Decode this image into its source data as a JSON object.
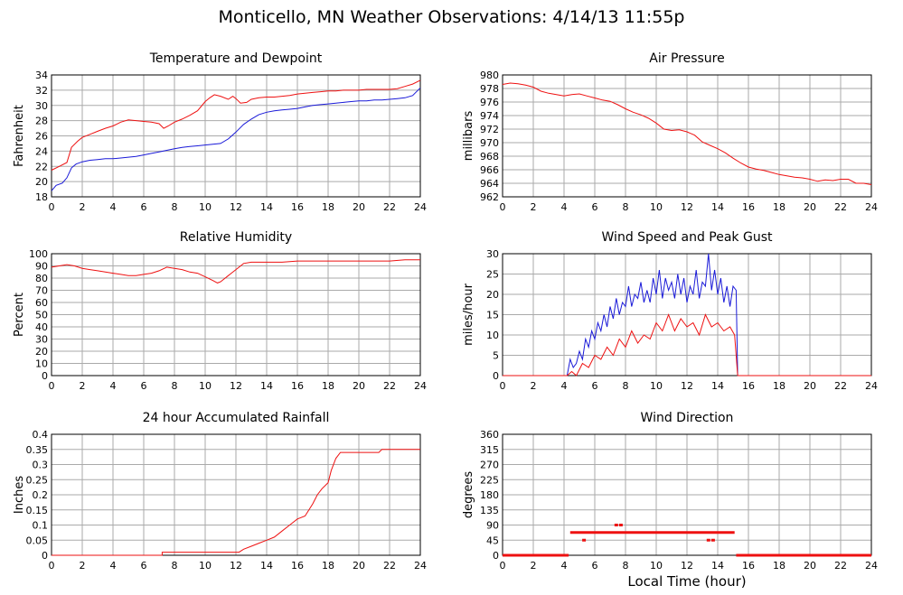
{
  "page": {
    "title": "Monticello, MN Weather Observations: 4/14/13 11:55p",
    "xlabel": "Local Time (hour)"
  },
  "colors": {
    "red": "#ee1111",
    "blue": "#1a1ad8",
    "grid": "#aaaaaa",
    "axis": "#000000"
  },
  "chart_data": [
    {
      "id": "temp",
      "type": "line",
      "title": "Temperature and Dewpoint",
      "xlabel": "",
      "ylabel": "Fahrenheit",
      "xlim": [
        0,
        24
      ],
      "ylim": [
        18,
        34
      ],
      "xticks": [
        0,
        2,
        4,
        6,
        8,
        10,
        12,
        14,
        16,
        18,
        20,
        22,
        24
      ],
      "yticks": [
        18,
        20,
        22,
        24,
        26,
        28,
        30,
        32,
        34
      ],
      "grid": true,
      "series": [
        {
          "color": "red",
          "x": [
            0,
            0.5,
            1,
            1.3,
            1.7,
            2,
            2.5,
            3,
            3.5,
            4,
            4.5,
            5,
            5.5,
            6,
            6.5,
            7,
            7.3,
            7.6,
            8,
            8.5,
            9,
            9.5,
            10,
            10.3,
            10.6,
            11,
            11.5,
            11.8,
            12,
            12.3,
            12.7,
            13,
            13.5,
            14,
            14.5,
            15,
            15.5,
            16,
            16.5,
            17,
            17.5,
            18,
            18.5,
            19,
            19.5,
            20,
            20.5,
            21,
            21.5,
            22,
            22.5,
            23,
            23.5,
            24
          ],
          "y": [
            21.5,
            22,
            22.5,
            24.5,
            25.3,
            25.8,
            26.2,
            26.6,
            27.0,
            27.3,
            27.8,
            28.1,
            28.0,
            27.9,
            27.8,
            27.6,
            27.0,
            27.3,
            27.8,
            28.2,
            28.7,
            29.3,
            30.5,
            31.0,
            31.4,
            31.2,
            30.8,
            31.2,
            30.9,
            30.3,
            30.4,
            30.8,
            31.0,
            31.1,
            31.1,
            31.2,
            31.3,
            31.5,
            31.6,
            31.7,
            31.8,
            31.9,
            31.9,
            32.0,
            32.0,
            32.0,
            32.1,
            32.1,
            32.1,
            32.1,
            32.2,
            32.5,
            32.8,
            33.3
          ]
        },
        {
          "color": "blue",
          "x": [
            0,
            0.3,
            0.7,
            1,
            1.3,
            1.6,
            2,
            2.5,
            3,
            3.5,
            4,
            4.5,
            5,
            5.5,
            6,
            6.5,
            7,
            7.5,
            8,
            8.5,
            9,
            9.5,
            10,
            10.5,
            11,
            11.5,
            12,
            12.5,
            13,
            13.5,
            14,
            14.5,
            15,
            15.5,
            16,
            16.5,
            17,
            17.5,
            18,
            18.5,
            19,
            19.5,
            20,
            20.5,
            21,
            21.5,
            22,
            22.5,
            23,
            23.5,
            24
          ],
          "y": [
            18.8,
            19.5,
            19.8,
            20.5,
            21.8,
            22.3,
            22.6,
            22.8,
            22.9,
            23.0,
            23.0,
            23.1,
            23.2,
            23.3,
            23.5,
            23.7,
            23.9,
            24.1,
            24.3,
            24.5,
            24.6,
            24.7,
            24.8,
            24.9,
            25.0,
            25.6,
            26.5,
            27.5,
            28.2,
            28.8,
            29.1,
            29.3,
            29.4,
            29.5,
            29.6,
            29.8,
            30.0,
            30.1,
            30.2,
            30.3,
            30.4,
            30.5,
            30.6,
            30.6,
            30.7,
            30.7,
            30.8,
            30.9,
            31.0,
            31.3,
            32.3
          ]
        }
      ]
    },
    {
      "id": "pressure",
      "type": "line",
      "title": "Air Pressure",
      "xlabel": "",
      "ylabel": "millibars",
      "xlim": [
        0,
        24
      ],
      "ylim": [
        962,
        980
      ],
      "xticks": [
        0,
        2,
        4,
        6,
        8,
        10,
        12,
        14,
        16,
        18,
        20,
        22,
        24
      ],
      "yticks": [
        962,
        964,
        966,
        968,
        970,
        972,
        974,
        976,
        978,
        980
      ],
      "grid": true,
      "series": [
        {
          "color": "red",
          "x": [
            0,
            0.5,
            1,
            1.5,
            2,
            2.5,
            3,
            3.5,
            4,
            4.5,
            5,
            5.5,
            6,
            6.5,
            7,
            7.5,
            8,
            8.5,
            9,
            9.5,
            10,
            10.5,
            11,
            11.5,
            12,
            12.5,
            13,
            13.5,
            14,
            14.5,
            15,
            15.5,
            16,
            16.5,
            17,
            17.5,
            18,
            18.5,
            19,
            19.5,
            20,
            20.5,
            21,
            21.5,
            22,
            22.5,
            23,
            23.5,
            24
          ],
          "y": [
            978.6,
            978.8,
            978.7,
            978.5,
            978.2,
            977.6,
            977.3,
            977.1,
            976.9,
            977.1,
            977.2,
            976.9,
            976.6,
            976.3,
            976.1,
            975.6,
            975.0,
            974.5,
            974.1,
            973.6,
            972.9,
            972.0,
            971.8,
            971.9,
            971.6,
            971.1,
            970.1,
            969.6,
            969.1,
            968.5,
            967.7,
            967.0,
            966.4,
            966.1,
            965.9,
            965.6,
            965.3,
            965.1,
            964.9,
            964.8,
            964.6,
            964.3,
            964.5,
            964.4,
            964.6,
            964.6,
            964.0,
            964.0,
            963.8
          ]
        }
      ]
    },
    {
      "id": "humidity",
      "type": "line",
      "title": "Relative Humidity",
      "xlabel": "",
      "ylabel": "Percent",
      "xlim": [
        0,
        24
      ],
      "ylim": [
        0,
        100
      ],
      "xticks": [
        0,
        2,
        4,
        6,
        8,
        10,
        12,
        14,
        16,
        18,
        20,
        22,
        24
      ],
      "yticks": [
        0,
        10,
        20,
        30,
        40,
        50,
        60,
        70,
        80,
        90,
        100
      ],
      "grid": true,
      "series": [
        {
          "color": "red",
          "x": [
            0,
            0.5,
            1,
            1.5,
            2,
            2.5,
            3,
            3.5,
            4,
            4.5,
            5,
            5.5,
            6,
            6.5,
            7,
            7.5,
            8,
            8.5,
            9,
            9.5,
            10,
            10.5,
            10.8,
            11,
            11.5,
            12,
            12.5,
            13,
            14,
            15,
            16,
            17,
            18,
            19,
            20,
            21,
            22,
            23,
            24
          ],
          "y": [
            89,
            90,
            91,
            90,
            88,
            87,
            86,
            85,
            84,
            83,
            82,
            82,
            83,
            84,
            86,
            89,
            88,
            87,
            85,
            84,
            81,
            78,
            76,
            77,
            82,
            87,
            92,
            93,
            93,
            93,
            94,
            94,
            94,
            94,
            94,
            94,
            94,
            95,
            95
          ]
        }
      ]
    },
    {
      "id": "wind",
      "type": "line",
      "title": "Wind Speed and Peak Gust",
      "xlabel": "",
      "ylabel": "miles/hour",
      "xlim": [
        0,
        24
      ],
      "ylim": [
        0,
        30
      ],
      "xticks": [
        0,
        2,
        4,
        6,
        8,
        10,
        12,
        14,
        16,
        18,
        20,
        22,
        24
      ],
      "yticks": [
        0,
        5,
        10,
        15,
        20,
        25,
        30
      ],
      "grid": true,
      "series": [
        {
          "color": "blue",
          "x": [
            0,
            4.2,
            4.4,
            4.6,
            4.8,
            5,
            5.2,
            5.4,
            5.6,
            5.8,
            6,
            6.2,
            6.4,
            6.6,
            6.8,
            7,
            7.2,
            7.4,
            7.6,
            7.8,
            8,
            8.2,
            8.4,
            8.6,
            8.8,
            9,
            9.2,
            9.4,
            9.6,
            9.8,
            10,
            10.2,
            10.4,
            10.6,
            10.8,
            11,
            11.2,
            11.4,
            11.6,
            11.8,
            12,
            12.2,
            12.4,
            12.6,
            12.8,
            13,
            13.2,
            13.4,
            13.6,
            13.8,
            14,
            14.2,
            14.4,
            14.6,
            14.8,
            15,
            15.2,
            15.3,
            16,
            18,
            20,
            22,
            24
          ],
          "y": [
            0,
            0,
            4,
            2,
            3,
            6,
            4,
            9,
            7,
            11,
            9,
            13,
            11,
            15,
            12,
            17,
            14,
            19,
            15,
            18,
            17,
            22,
            17,
            20,
            19,
            23,
            18,
            21,
            18,
            24,
            20,
            26,
            19,
            24,
            21,
            23,
            19,
            25,
            20,
            24,
            18,
            22,
            20,
            26,
            19,
            23,
            22,
            30,
            21,
            26,
            20,
            24,
            18,
            22,
            17,
            22,
            21,
            0,
            0,
            0,
            0,
            0,
            0
          ]
        },
        {
          "color": "red",
          "x": [
            0,
            4.2,
            4.5,
            4.8,
            5.2,
            5.6,
            6,
            6.4,
            6.8,
            7.2,
            7.6,
            8,
            8.4,
            8.8,
            9.2,
            9.6,
            10,
            10.4,
            10.8,
            11.2,
            11.6,
            12,
            12.4,
            12.8,
            13.2,
            13.6,
            14,
            14.4,
            14.8,
            15.1,
            15.3,
            16,
            18,
            20,
            22,
            24
          ],
          "y": [
            0,
            0,
            1,
            0,
            3,
            2,
            5,
            4,
            7,
            5,
            9,
            7,
            11,
            8,
            10,
            9,
            13,
            11,
            15,
            11,
            14,
            12,
            13,
            10,
            15,
            12,
            13,
            11,
            12,
            10,
            0,
            0,
            0,
            0,
            0,
            0
          ]
        }
      ]
    },
    {
      "id": "rain",
      "type": "line",
      "title": "24 hour Accumulated Rainfall",
      "xlabel": "",
      "ylabel": "Inches",
      "xlim": [
        0,
        24
      ],
      "ylim": [
        0,
        0.4
      ],
      "xticks": [
        0,
        2,
        4,
        6,
        8,
        10,
        12,
        14,
        16,
        18,
        20,
        22,
        24
      ],
      "yticks": [
        0,
        0.05,
        0.1,
        0.15,
        0.2,
        0.25,
        0.3,
        0.35,
        0.4
      ],
      "grid": true,
      "series": [
        {
          "color": "red",
          "x": [
            0,
            7.2,
            7.2,
            12.2,
            12.5,
            13,
            13.5,
            14,
            14.5,
            15,
            15.5,
            16,
            16.5,
            17,
            17.3,
            17.6,
            18,
            18.2,
            18.5,
            18.8,
            19.2,
            21.3,
            21.5,
            24
          ],
          "y": [
            0,
            0,
            0.01,
            0.01,
            0.02,
            0.03,
            0.04,
            0.05,
            0.06,
            0.08,
            0.1,
            0.12,
            0.13,
            0.17,
            0.2,
            0.22,
            0.24,
            0.28,
            0.32,
            0.34,
            0.34,
            0.34,
            0.35,
            0.35
          ]
        }
      ]
    },
    {
      "id": "direction",
      "type": "scatter",
      "title": "Wind Direction",
      "xlabel": "Local Time (hour)",
      "ylabel": "degrees",
      "xlim": [
        0,
        24
      ],
      "ylim": [
        0,
        360
      ],
      "xticks": [
        0,
        2,
        4,
        6,
        8,
        10,
        12,
        14,
        16,
        18,
        20,
        22,
        24
      ],
      "yticks": [
        0,
        45,
        90,
        135,
        180,
        225,
        270,
        315,
        360
      ],
      "grid": true,
      "segments": [
        {
          "color": "red",
          "from": 0,
          "to": 4.3,
          "y": 0
        },
        {
          "color": "red",
          "from": 4.4,
          "to": 15.1,
          "y": 68
        },
        {
          "color": "red",
          "from": 15.2,
          "to": 24,
          "y": 0
        }
      ],
      "points": [
        {
          "color": "red",
          "x": 5.3,
          "y": 45
        },
        {
          "color": "red",
          "x": 7.4,
          "y": 90
        },
        {
          "color": "red",
          "x": 7.7,
          "y": 90
        },
        {
          "color": "red",
          "x": 13.4,
          "y": 45
        },
        {
          "color": "red",
          "x": 13.7,
          "y": 45
        }
      ]
    }
  ]
}
